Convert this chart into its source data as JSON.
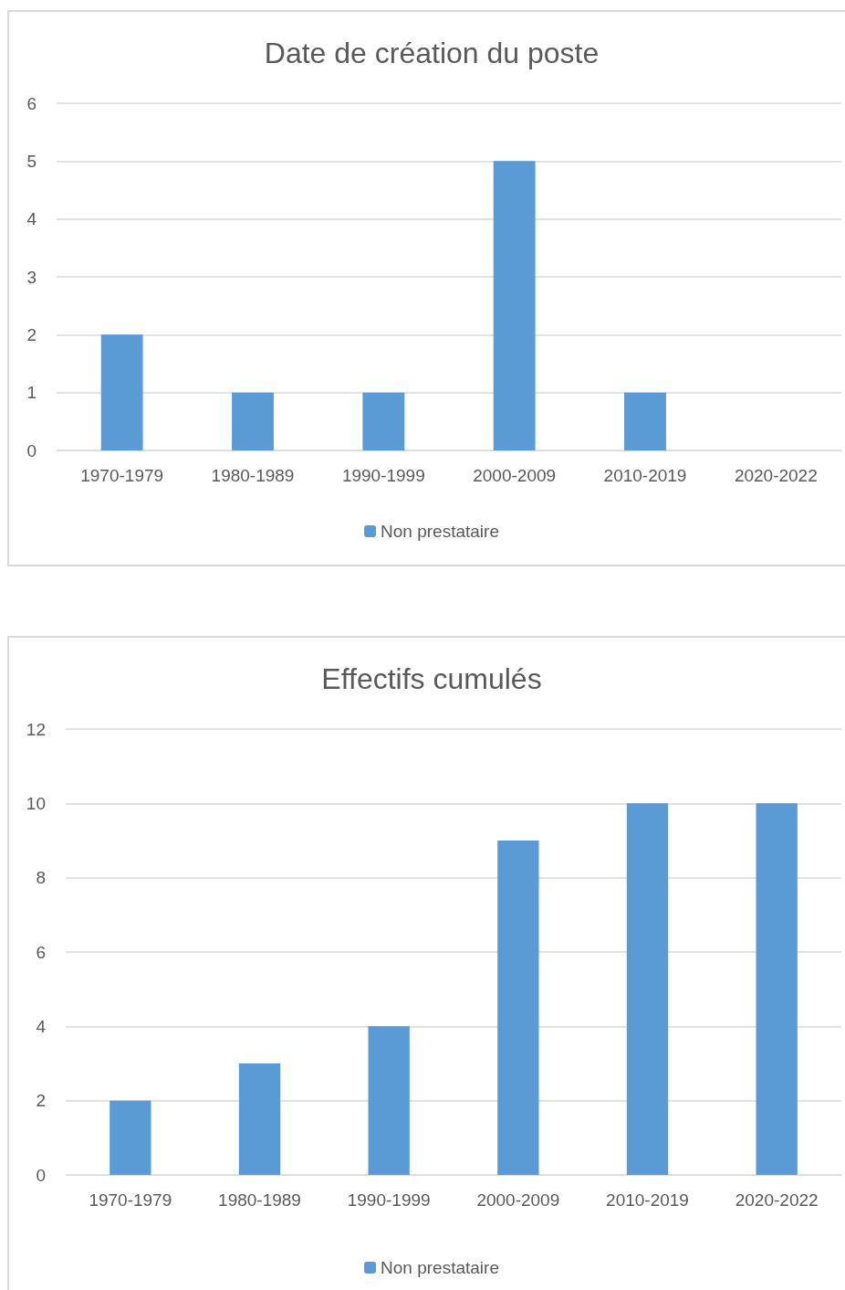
{
  "chart_data": [
    {
      "type": "bar",
      "title": "Date de création du poste",
      "categories": [
        "1970-1979",
        "1980-1989",
        "1990-1999",
        "2000-2009",
        "2010-2019",
        "2020-2022"
      ],
      "series": [
        {
          "name": "Non prestataire",
          "color": "#5b9bd5",
          "values": [
            2,
            1,
            1,
            5,
            1,
            0
          ]
        }
      ],
      "ylim": [
        0,
        6
      ],
      "yticks": [
        0,
        1,
        2,
        3,
        4,
        5,
        6
      ],
      "grid": "y",
      "legend": "bottom"
    },
    {
      "type": "bar",
      "title": "Effectifs cumulés",
      "categories": [
        "1970-1979",
        "1980-1989",
        "1990-1999",
        "2000-2009",
        "2010-2019",
        "2020-2022"
      ],
      "series": [
        {
          "name": "Non prestataire",
          "color": "#5b9bd5",
          "values": [
            2,
            3,
            4,
            9,
            10,
            10
          ]
        }
      ],
      "ylim": [
        0,
        12
      ],
      "yticks": [
        0,
        2,
        4,
        6,
        8,
        10,
        12
      ],
      "grid": "y",
      "legend": "bottom"
    }
  ]
}
